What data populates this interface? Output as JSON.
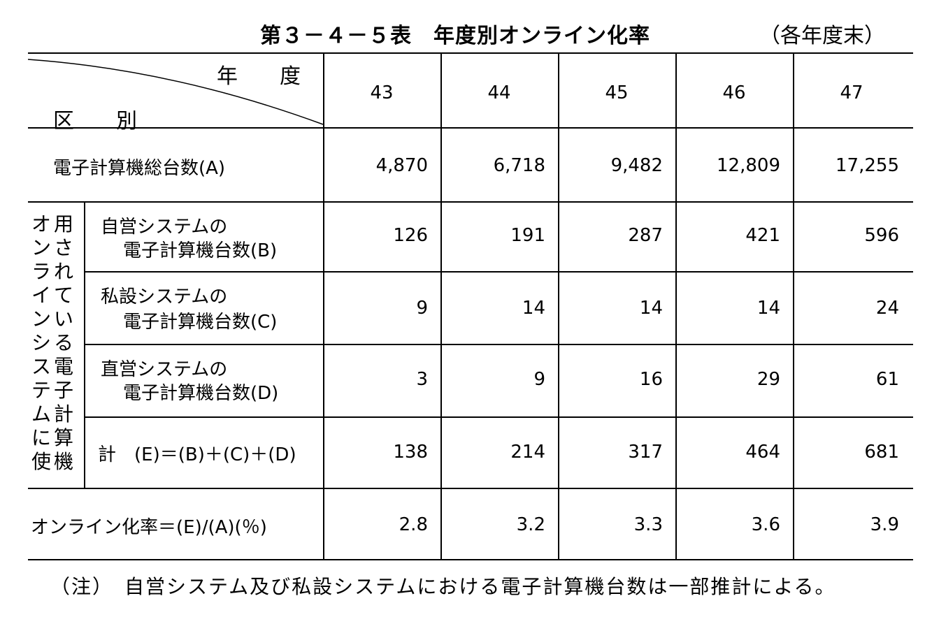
{
  "title": "第３－４－５表　年度別オンライン化率",
  "unit": "（各年度末）",
  "header": {
    "year_label": "年　　度",
    "category_label": "区　　別",
    "years": [
      "43",
      "44",
      "45",
      "46",
      "47"
    ]
  },
  "rows": {
    "total": {
      "label": "電子計算機総台数(A)",
      "values": [
        "4,870",
        "6,718",
        "9,482",
        "12,809",
        "17,255"
      ]
    },
    "group_label_col1": "オンラインシステムに使",
    "group_label_col2": "用されている電子計算機",
    "own": {
      "label_line1": "自営システムの",
      "label_line2": "電子計算機台数(B)",
      "values": [
        "126",
        "191",
        "287",
        "421",
        "596"
      ]
    },
    "private": {
      "label_line1": "私設システムの",
      "label_line2": "電子計算機台数(C)",
      "values": [
        "9",
        "14",
        "14",
        "14",
        "24"
      ]
    },
    "direct": {
      "label_line1": "直営システムの",
      "label_line2": "電子計算機台数(D)",
      "values": [
        "3",
        "9",
        "16",
        "29",
        "61"
      ]
    },
    "sum": {
      "label": "計　(E)＝(B)＋(C)＋(D)",
      "values": [
        "138",
        "214",
        "317",
        "464",
        "681"
      ]
    },
    "rate": {
      "label": "オンライン化率＝(E)/(A)(％)",
      "values": [
        "2.8",
        "3.2",
        "3.3",
        "3.6",
        "3.9"
      ]
    }
  },
  "note": "（注）　自営システム及び私設システムにおける電子計算機台数は一部推計による。"
}
